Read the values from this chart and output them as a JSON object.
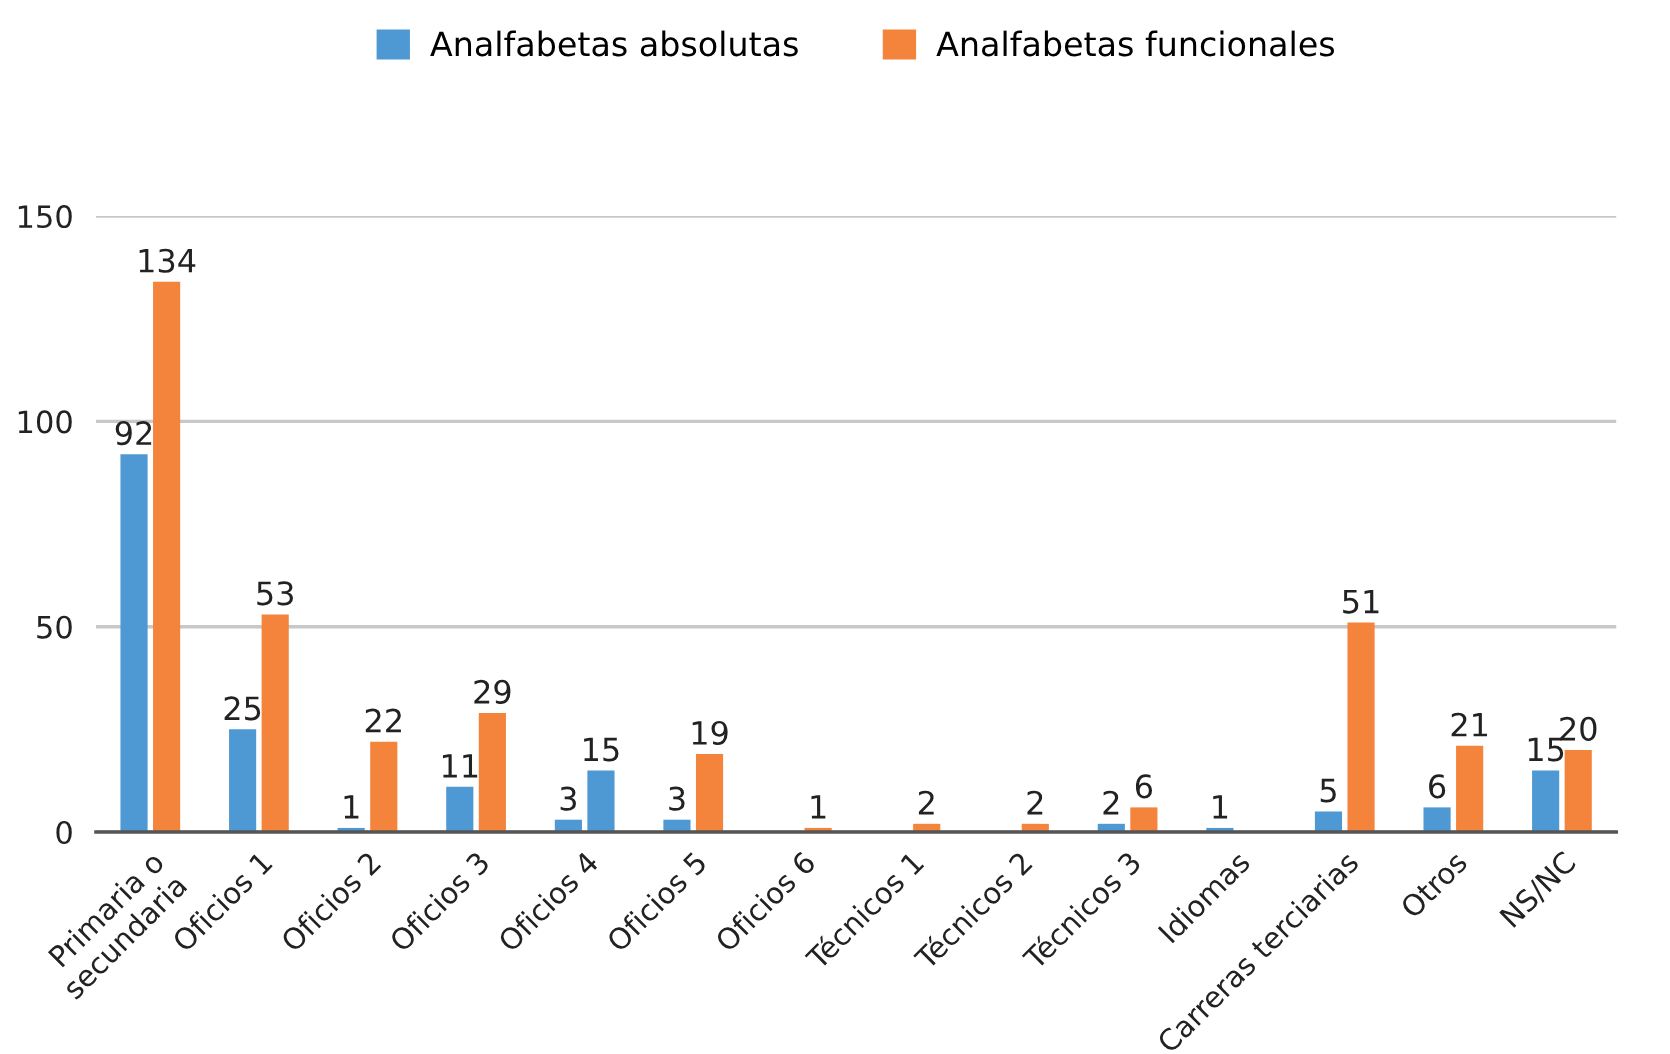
{
  "chart_data": {
    "type": "bar",
    "categories": [
      "Primaria o\nsecundaria",
      "Oficios 1",
      "Oficios 2",
      "Oficios 3",
      "Oficios 4",
      "Oficios 5",
      "Oficios 6",
      "Técnicos 1",
      "Técnicos 2",
      "Técnicos 3",
      "Idiomas",
      "Carreras terciarias",
      "Otros",
      "NS/NC"
    ],
    "series": [
      {
        "name": "Analfabetas absolutas",
        "color": "#4e98d3",
        "values": [
          92,
          25,
          1,
          11,
          3,
          3,
          null,
          null,
          null,
          2,
          1,
          5,
          6,
          15
        ]
      },
      {
        "name": "Analfabetas funcionales",
        "color": "#f4843b",
        "colors": [
          "#f4843b",
          "#f4843b",
          "#f4843b",
          "#f4843b",
          "#4e98d3",
          "#f4843b",
          "#f4843b",
          "#f4843b",
          "#f4843b",
          "#f4843b",
          "#f4843b",
          "#f4843b",
          "#f4843b",
          "#f4843b"
        ],
        "values": [
          134,
          53,
          22,
          29,
          15,
          19,
          1,
          2,
          2,
          6,
          null,
          51,
          21,
          20
        ]
      }
    ],
    "ylim": [
      0,
      150
    ],
    "yticks": [
      0,
      50,
      100,
      150
    ],
    "grid": "y",
    "legend": "top",
    "data_labels": true
  }
}
